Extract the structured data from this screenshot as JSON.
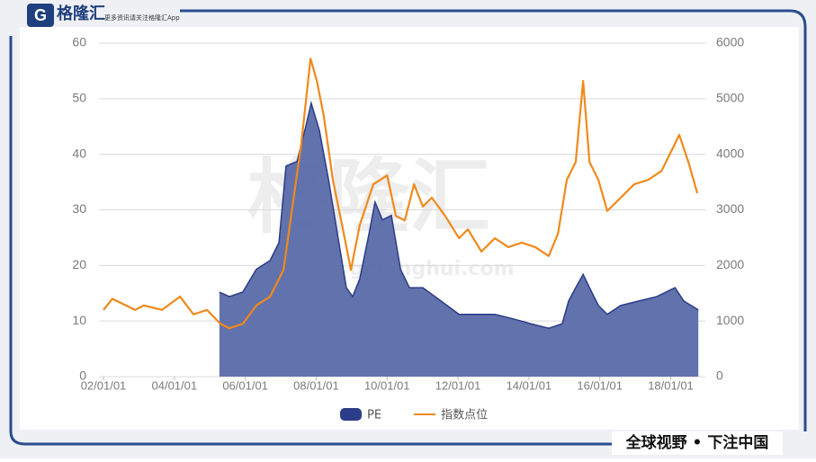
{
  "header": {
    "logo": "格隆汇",
    "tagline": "更多资讯请关注格隆汇App",
    "watermark": "格隆汇",
    "watermark_url": "gelonghui.com"
  },
  "footer": {
    "slogan": "全球视野 • 下注中国"
  },
  "chart_data": {
    "type": "area_line",
    "xlim": [
      2002,
      2018.85
    ],
    "xticks": [
      {
        "value": 2002,
        "label": "02/01/01"
      },
      {
        "value": 2004,
        "label": "04/01/01"
      },
      {
        "value": 2006,
        "label": "06/01/01"
      },
      {
        "value": 2008,
        "label": "08/01/01"
      },
      {
        "value": 2010,
        "label": "10/01/01"
      },
      {
        "value": 2012,
        "label": "12/01/01"
      },
      {
        "value": 2014,
        "label": "14/01/01"
      },
      {
        "value": 2016,
        "label": "16/01/01"
      },
      {
        "value": 2018,
        "label": "18/01/01"
      }
    ],
    "ylim": [
      0,
      60
    ],
    "yticks": [
      0,
      10,
      20,
      30,
      40,
      50,
      60
    ],
    "y2lim": [
      0,
      6000
    ],
    "y2ticks": [
      0,
      1000,
      2000,
      3000,
      4000,
      5000,
      6000
    ],
    "grid": true,
    "series": [
      {
        "name": "PE",
        "kind": "area",
        "color": "#5a6aa8",
        "axis": "y",
        "x": [
          2005.27,
          2005.55,
          2005.93,
          2006.31,
          2006.7,
          2006.95,
          2007.15,
          2007.46,
          2007.71,
          2007.86,
          2008.09,
          2008.35,
          2008.6,
          2008.85,
          2009.03,
          2009.23,
          2009.49,
          2009.66,
          2009.87,
          2010.12,
          2010.38,
          2010.63,
          2011.01,
          2011.52,
          2012.03,
          2012.53,
          2013.04,
          2013.55,
          2014.06,
          2014.56,
          2014.94,
          2015.12,
          2015.32,
          2015.53,
          2015.71,
          2015.96,
          2016.21,
          2016.59,
          2017.1,
          2017.61,
          2018.12,
          2018.37,
          2018.78
        ],
        "values": [
          15.2,
          14.4,
          15.2,
          19.3,
          20.9,
          24.1,
          37.9,
          38.7,
          45.1,
          49.2,
          44.3,
          35.4,
          25.7,
          16.0,
          14.4,
          17.6,
          25.7,
          31.4,
          28.2,
          29.0,
          19.3,
          16.0,
          16.0,
          13.6,
          11.2,
          11.2,
          11.2,
          10.4,
          9.5,
          8.7,
          9.5,
          13.6,
          16.0,
          18.4,
          16.0,
          12.8,
          11.2,
          12.8,
          13.6,
          14.4,
          16.0,
          13.6,
          12.0
        ]
      },
      {
        "name": "指数点位",
        "kind": "line",
        "color": "#f0891c",
        "axis": "y2",
        "x": [
          2002.0,
          2002.25,
          2002.89,
          2003.14,
          2003.65,
          2004.16,
          2004.54,
          2004.92,
          2005.3,
          2005.55,
          2005.93,
          2006.31,
          2006.7,
          2007.08,
          2007.33,
          2007.58,
          2007.84,
          2008.02,
          2008.22,
          2008.47,
          2008.73,
          2008.98,
          2009.23,
          2009.61,
          2010.0,
          2010.25,
          2010.5,
          2010.76,
          2011.01,
          2011.26,
          2011.64,
          2012.03,
          2012.28,
          2012.66,
          2013.04,
          2013.42,
          2013.8,
          2014.18,
          2014.56,
          2014.82,
          2015.07,
          2015.32,
          2015.53,
          2015.71,
          2015.96,
          2016.21,
          2016.59,
          2016.97,
          2017.36,
          2017.74,
          2018.12,
          2018.24,
          2018.5,
          2018.75
        ],
        "values": [
          1200,
          1400,
          1200,
          1280,
          1200,
          1440,
          1120,
          1200,
          950,
          870,
          950,
          1280,
          1440,
          1920,
          3060,
          4190,
          5720,
          5320,
          4670,
          3540,
          2730,
          1920,
          2730,
          3460,
          3620,
          2890,
          2810,
          3460,
          3060,
          3220,
          2890,
          2490,
          2650,
          2250,
          2490,
          2330,
          2410,
          2330,
          2170,
          2570,
          3540,
          3860,
          5320,
          3860,
          3540,
          2980,
          3220,
          3460,
          3540,
          3700,
          4190,
          4350,
          3860,
          3300
        ]
      }
    ]
  }
}
